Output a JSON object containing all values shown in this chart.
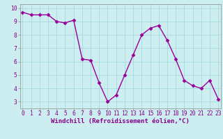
{
  "x": [
    0,
    1,
    2,
    3,
    4,
    5,
    6,
    7,
    8,
    9,
    10,
    11,
    12,
    13,
    14,
    15,
    16,
    17,
    18,
    19,
    20,
    21,
    22,
    23
  ],
  "y": [
    9.7,
    9.5,
    9.5,
    9.5,
    9.0,
    8.9,
    9.1,
    6.2,
    6.1,
    4.4,
    3.0,
    3.5,
    5.0,
    6.5,
    8.0,
    8.5,
    8.7,
    7.6,
    6.2,
    4.6,
    4.2,
    4.0,
    4.6,
    3.2
  ],
  "line_color": "#990099",
  "marker": "D",
  "marker_size": 2.5,
  "background_color": "#cceef0",
  "grid_color": "#aadddd",
  "xlabel": "Windchill (Refroidissement éolien,°C)",
  "xlabel_fontsize": 6.5,
  "ylim": [
    2.5,
    10.3
  ],
  "yticks": [
    3,
    4,
    5,
    6,
    7,
    8,
    9,
    10
  ],
  "xticks": [
    0,
    1,
    2,
    3,
    4,
    5,
    6,
    7,
    8,
    9,
    10,
    11,
    12,
    13,
    14,
    15,
    16,
    17,
    18,
    19,
    20,
    21,
    22,
    23
  ],
  "tick_fontsize": 5.8,
  "line_width": 1.0,
  "xlim": [
    -0.3,
    23.3
  ]
}
